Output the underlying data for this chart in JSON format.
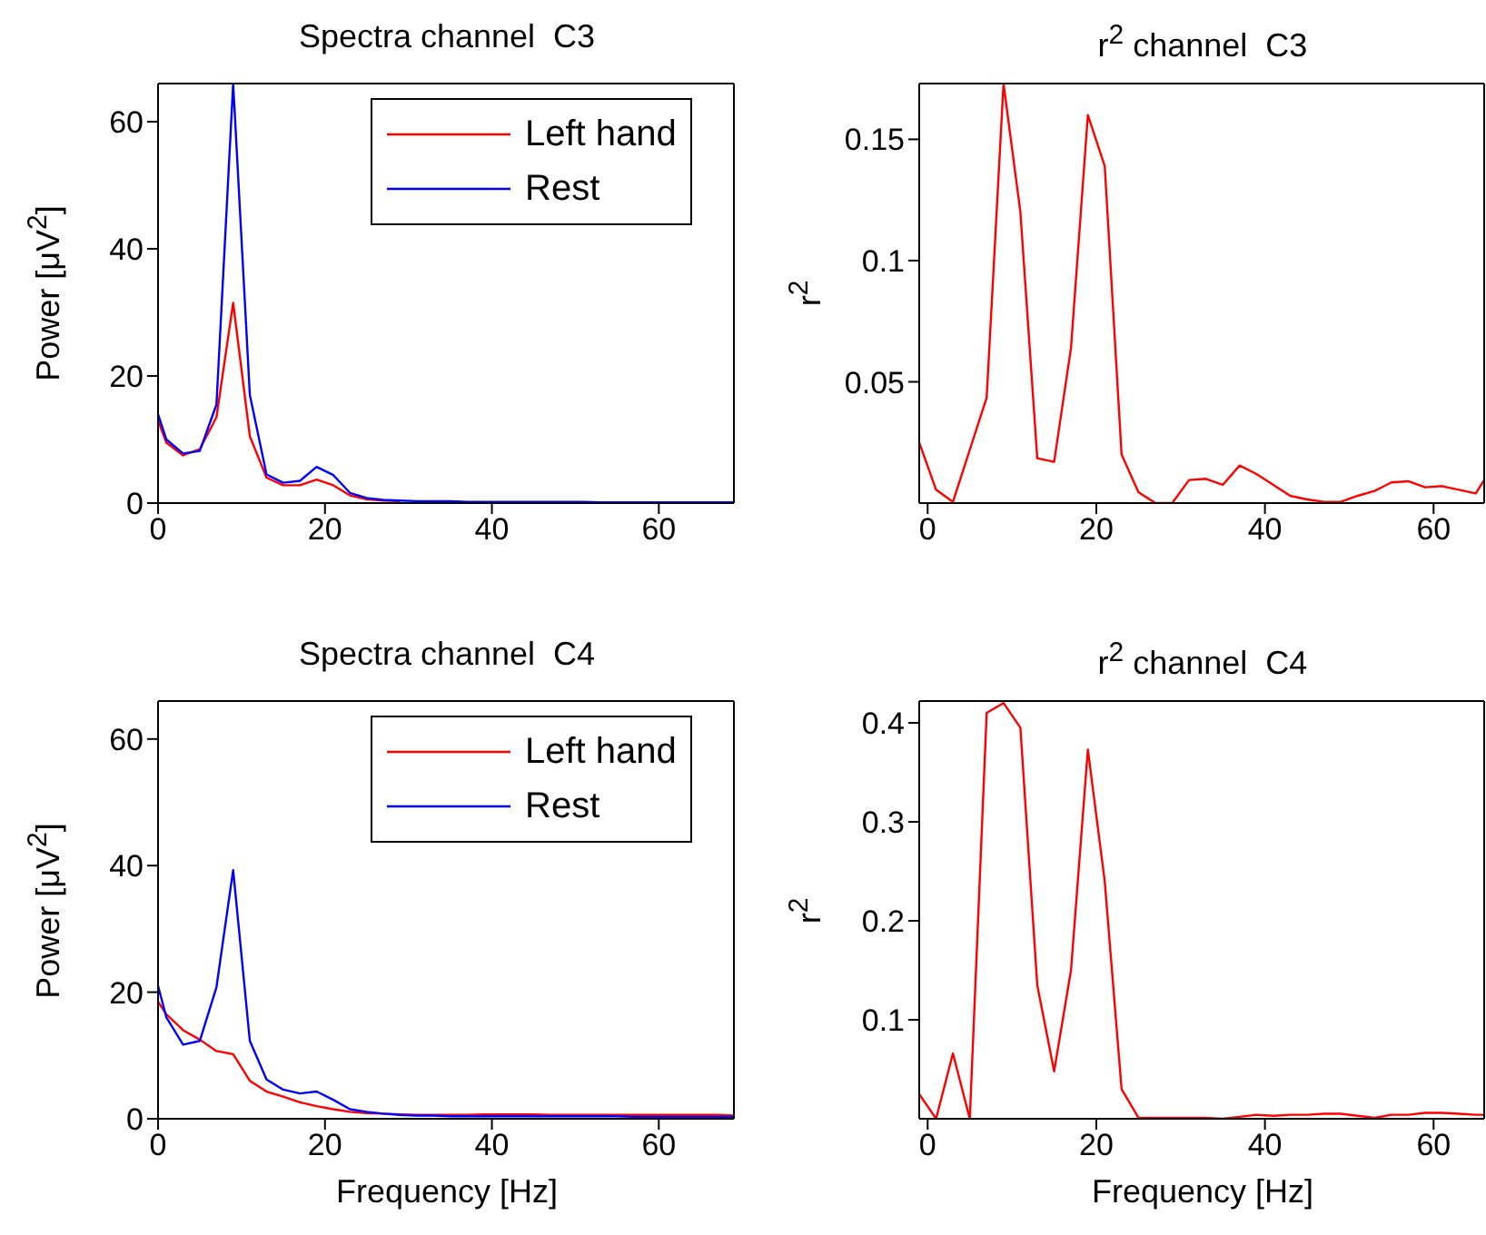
{
  "chart_data": [
    {
      "type": "line",
      "title": "Spectra channel  C3",
      "ylabel": "Power [μV$^{2}$]",
      "x": [
        0,
        1,
        3,
        5,
        7,
        9,
        11,
        13,
        15,
        17,
        19,
        21,
        23,
        25,
        27,
        29,
        31,
        33,
        35,
        37,
        39,
        41,
        43,
        45,
        47,
        49,
        51,
        53,
        55,
        57,
        59,
        61,
        63,
        65,
        67,
        69
      ],
      "xlim": [
        0,
        69
      ],
      "xticks": [
        0,
        20,
        40,
        60
      ],
      "ylim": [
        0,
        66
      ],
      "yticks": [
        0,
        20,
        40,
        60
      ],
      "legend": "top right",
      "grid": false,
      "series": [
        {
          "name": "Left hand",
          "color": "#ff0000",
          "values": [
            13,
            9.5,
            7.5,
            8.5,
            13.5,
            31.5,
            10.5,
            4,
            2.8,
            2.8,
            3.7,
            2.8,
            1.2,
            0.6,
            0.4,
            0.3,
            null,
            null,
            null,
            null,
            null,
            null,
            null,
            null,
            null,
            null,
            null,
            null,
            null,
            null,
            null,
            null,
            null,
            null,
            null,
            null
          ]
        },
        {
          "name": "Rest",
          "color": "#0000ff",
          "values": [
            14,
            10,
            7.8,
            8.2,
            15.5,
            66,
            17,
            4.5,
            3.2,
            3.5,
            5.7,
            4.4,
            1.6,
            0.8,
            0.5,
            0.4,
            0.3,
            0.3,
            0.3,
            0.2,
            0.2,
            0.2,
            0.2,
            0.2,
            0.2,
            0.2,
            0.2,
            0.1,
            0.1,
            0.1,
            0.1,
            0.1,
            0.1,
            0.1,
            0.1,
            0.1
          ]
        }
      ]
    },
    {
      "type": "line",
      "title": "r$^{2}$ channel  C3",
      "ylabel": "r$^{2}$",
      "x": [
        -1,
        1,
        3,
        5,
        7,
        9,
        11,
        13,
        15,
        17,
        19,
        21,
        23,
        25,
        27,
        29,
        31,
        33,
        35,
        37,
        39,
        41,
        43,
        45,
        47,
        49,
        51,
        53,
        55,
        57,
        59,
        61,
        63,
        65,
        66
      ],
      "xlim": [
        -1,
        66
      ],
      "xticks": [
        0,
        20,
        40,
        60
      ],
      "ylim": [
        0,
        0.173
      ],
      "yticks": [
        0.05,
        0.1,
        0.15
      ],
      "grid": false,
      "series": [
        {
          "color": "#ff0000",
          "values": [
            0.025,
            0.0055,
            0.0005,
            0.022,
            0.0435,
            0.173,
            0.12,
            0.0185,
            0.017,
            0.064,
            0.16,
            0.139,
            0.02,
            0.0045,
            0,
            0,
            0.0095,
            0.01,
            0.0075,
            0.0155,
            0.012,
            0.0075,
            0.003,
            0.0015,
            0.0005,
            0.0005,
            0.003,
            0.005,
            0.0085,
            0.009,
            0.0065,
            0.007,
            0.0055,
            0.004,
            0.0095
          ]
        }
      ]
    },
    {
      "type": "line",
      "title": "Spectra channel  C4",
      "xlabel": "Frequency [Hz]",
      "ylabel": "Power [μV$^{2}$]",
      "x": [
        0,
        1,
        3,
        5,
        7,
        9,
        11,
        13,
        15,
        17,
        19,
        21,
        23,
        25,
        27,
        29,
        31,
        33,
        35,
        37,
        39,
        41,
        43,
        45,
        47,
        49,
        51,
        53,
        55,
        57,
        59,
        61,
        63,
        65,
        67,
        69
      ],
      "xlim": [
        0,
        69
      ],
      "xticks": [
        0,
        20,
        40,
        60
      ],
      "ylim": [
        0,
        66
      ],
      "yticks": [
        0,
        20,
        40,
        60
      ],
      "legend": "top right",
      "grid": false,
      "series": [
        {
          "name": "Left hand",
          "color": "#ff0000",
          "values": [
            18.5,
            16.5,
            14,
            12.5,
            10.7,
            10.2,
            6,
            4.3,
            3.5,
            2.6,
            2,
            1.5,
            1.1,
            0.9,
            0.8,
            0.7,
            0.6,
            0.6,
            0.6,
            0.6,
            0.7,
            0.7,
            0.7,
            0.7,
            0.6,
            0.6,
            0.6,
            0.6,
            0.6,
            0.6,
            0.6,
            0.6,
            0.6,
            0.6,
            0.6,
            0.5
          ]
        },
        {
          "name": "Rest",
          "color": "#0000ff",
          "values": [
            21,
            16,
            11.7,
            12.3,
            20.8,
            39.3,
            12.3,
            6.2,
            4.6,
            4,
            4.3,
            3,
            1.5,
            1.1,
            0.8,
            0.6,
            0.5,
            0.5,
            0.4,
            0.4,
            0.4,
            0.4,
            0.4,
            0.4,
            0.4,
            0.4,
            0.4,
            0.4,
            0.4,
            0.3,
            0.3,
            0.3,
            0.3,
            0.3,
            0.3,
            0.3
          ]
        }
      ]
    },
    {
      "type": "line",
      "title": "r$^{2}$ channel  C4",
      "xlabel": "Frequency [Hz]",
      "ylabel": "r$^{2}$",
      "x": [
        -1,
        1,
        3,
        5,
        7,
        9,
        11,
        13,
        15,
        17,
        19,
        21,
        23,
        25,
        27,
        29,
        31,
        33,
        35,
        37,
        39,
        41,
        43,
        45,
        47,
        49,
        51,
        53,
        55,
        57,
        59,
        61,
        63,
        65,
        66
      ],
      "xlim": [
        -1,
        66
      ],
      "xticks": [
        0,
        20,
        40,
        60
      ],
      "ylim": [
        0,
        0.422
      ],
      "yticks": [
        0.1,
        0.2,
        0.3,
        0.4
      ],
      "grid": false,
      "series": [
        {
          "color": "#ff0000",
          "values": [
            0.025,
            0,
            0.066,
            0,
            0.41,
            0.42,
            0.395,
            0.135,
            0.048,
            0.15,
            0.373,
            0.24,
            0.03,
            0.001,
            0.001,
            0.001,
            0.001,
            0.001,
            0,
            0.002,
            0.004,
            0.003,
            0.004,
            0.004,
            0.005,
            0.005,
            0.003,
            0.001,
            0.004,
            0.004,
            0.006,
            0.006,
            0.005,
            0.004,
            0.004
          ]
        }
      ]
    }
  ]
}
